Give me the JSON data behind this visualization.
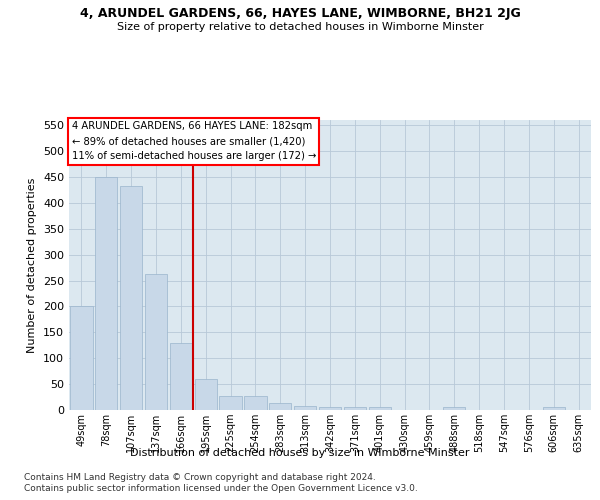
{
  "title": "4, ARUNDEL GARDENS, 66, HAYES LANE, WIMBORNE, BH21 2JG",
  "subtitle": "Size of property relative to detached houses in Wimborne Minster",
  "xlabel": "Distribution of detached houses by size in Wimborne Minster",
  "ylabel": "Number of detached properties",
  "bar_color": "#c8d8e8",
  "bar_edge_color": "#9ab4cc",
  "grid_color": "#b8c8d8",
  "background_color": "#dce8f0",
  "vline_color": "#cc0000",
  "vline_x": 4.5,
  "annotation_lines": [
    "4 ARUNDEL GARDENS, 66 HAYES LANE: 182sqm",
    "← 89% of detached houses are smaller (1,420)",
    "11% of semi-detached houses are larger (172) →"
  ],
  "categories": [
    "49sqm",
    "78sqm",
    "107sqm",
    "137sqm",
    "166sqm",
    "195sqm",
    "225sqm",
    "254sqm",
    "283sqm",
    "313sqm",
    "342sqm",
    "371sqm",
    "401sqm",
    "430sqm",
    "459sqm",
    "488sqm",
    "518sqm",
    "547sqm",
    "576sqm",
    "606sqm",
    "635sqm"
  ],
  "values": [
    200,
    450,
    432,
    263,
    130,
    60,
    28,
    28,
    13,
    8,
    5,
    5,
    5,
    0,
    0,
    5,
    0,
    0,
    0,
    5,
    0
  ],
  "ylim": [
    0,
    560
  ],
  "yticks": [
    0,
    50,
    100,
    150,
    200,
    250,
    300,
    350,
    400,
    450,
    500,
    550
  ],
  "footnote1": "Contains HM Land Registry data © Crown copyright and database right 2024.",
  "footnote2": "Contains public sector information licensed under the Open Government Licence v3.0."
}
